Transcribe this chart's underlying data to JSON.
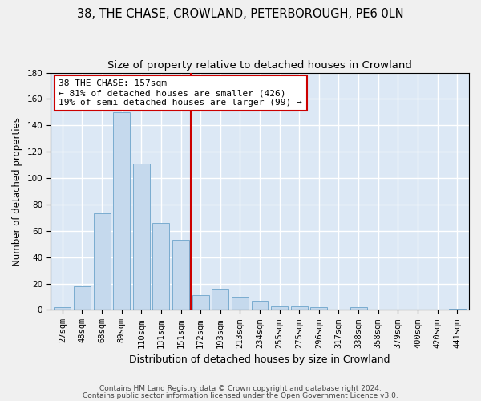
{
  "title1": "38, THE CHASE, CROWLAND, PETERBOROUGH, PE6 0LN",
  "title2": "Size of property relative to detached houses in Crowland",
  "xlabel": "Distribution of detached houses by size in Crowland",
  "ylabel": "Number of detached properties",
  "footer1": "Contains HM Land Registry data © Crown copyright and database right 2024.",
  "footer2": "Contains public sector information licensed under the Open Government Licence v3.0.",
  "categories": [
    "27sqm",
    "48sqm",
    "68sqm",
    "89sqm",
    "110sqm",
    "131sqm",
    "151sqm",
    "172sqm",
    "193sqm",
    "213sqm",
    "234sqm",
    "255sqm",
    "275sqm",
    "296sqm",
    "317sqm",
    "338sqm",
    "358sqm",
    "379sqm",
    "400sqm",
    "420sqm",
    "441sqm"
  ],
  "values": [
    2,
    18,
    73,
    150,
    111,
    66,
    53,
    11,
    16,
    10,
    7,
    3,
    3,
    2,
    0,
    2,
    0,
    0,
    0,
    0,
    1
  ],
  "bar_color": "#c5d9ed",
  "bar_edge_color": "#7aacd0",
  "vline_x": 6.5,
  "vline_color": "#cc0000",
  "annotation_text": "38 THE CHASE: 157sqm\n← 81% of detached houses are smaller (426)\n19% of semi-detached houses are larger (99) →",
  "annotation_box_color": "#ffffff",
  "annotation_box_edge": "#cc0000",
  "ylim": [
    0,
    180
  ],
  "yticks": [
    0,
    20,
    40,
    60,
    80,
    100,
    120,
    140,
    160,
    180
  ],
  "plot_bg_color": "#dce8f5",
  "grid_color": "#ffffff",
  "fig_bg_color": "#f0f0f0",
  "title_fontsize": 10.5,
  "subtitle_fontsize": 9.5,
  "tick_fontsize": 7.5,
  "ylabel_fontsize": 8.5,
  "xlabel_fontsize": 9,
  "annotation_fontsize": 8,
  "footer_fontsize": 6.5
}
